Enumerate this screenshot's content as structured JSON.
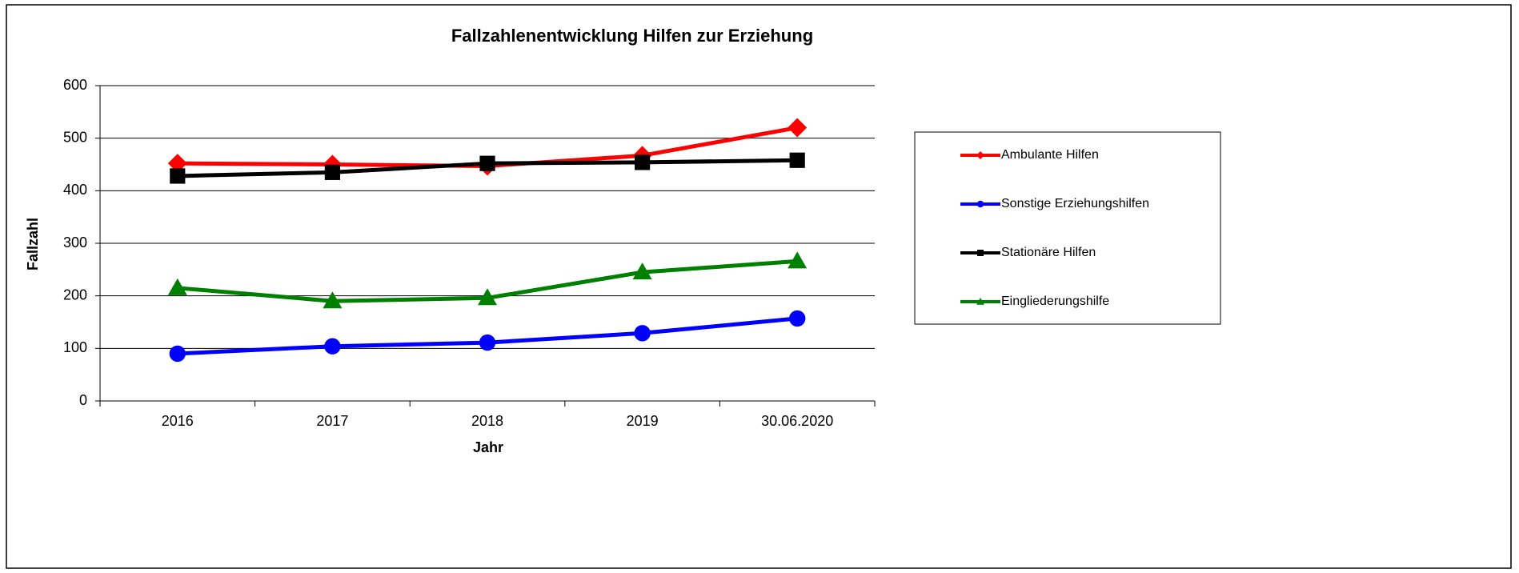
{
  "chart_data": {
    "type": "line",
    "title": "Fallzahlenentwicklung Hilfen zur Erziehung",
    "x_label": "Jahr",
    "y_label": "Fallzahl",
    "categories": [
      "2016",
      "2017",
      "2018",
      "2019",
      "30.06.2020"
    ],
    "series": [
      {
        "name": "Ambulante Hilfen",
        "color": "#ff0000",
        "marker": "diamond",
        "values": [
          452,
          450,
          447,
          467,
          520
        ]
      },
      {
        "name": "Sonstige Erziehungshilfen",
        "color": "#0000ff",
        "marker": "circle",
        "values": [
          90,
          104,
          111,
          129,
          157
        ]
      },
      {
        "name": "Stationäre Hilfen",
        "color": "#000000",
        "marker": "square",
        "values": [
          428,
          435,
          452,
          454,
          458
        ]
      },
      {
        "name": "Eingliederungshilfe",
        "color": "#008000",
        "marker": "triangle",
        "values": [
          215,
          190,
          196,
          245,
          266
        ]
      }
    ],
    "ylim": [
      0,
      600
    ],
    "yticks": [
      0,
      100,
      200,
      300,
      400,
      500,
      600
    ],
    "grid": true,
    "legend": "right"
  }
}
